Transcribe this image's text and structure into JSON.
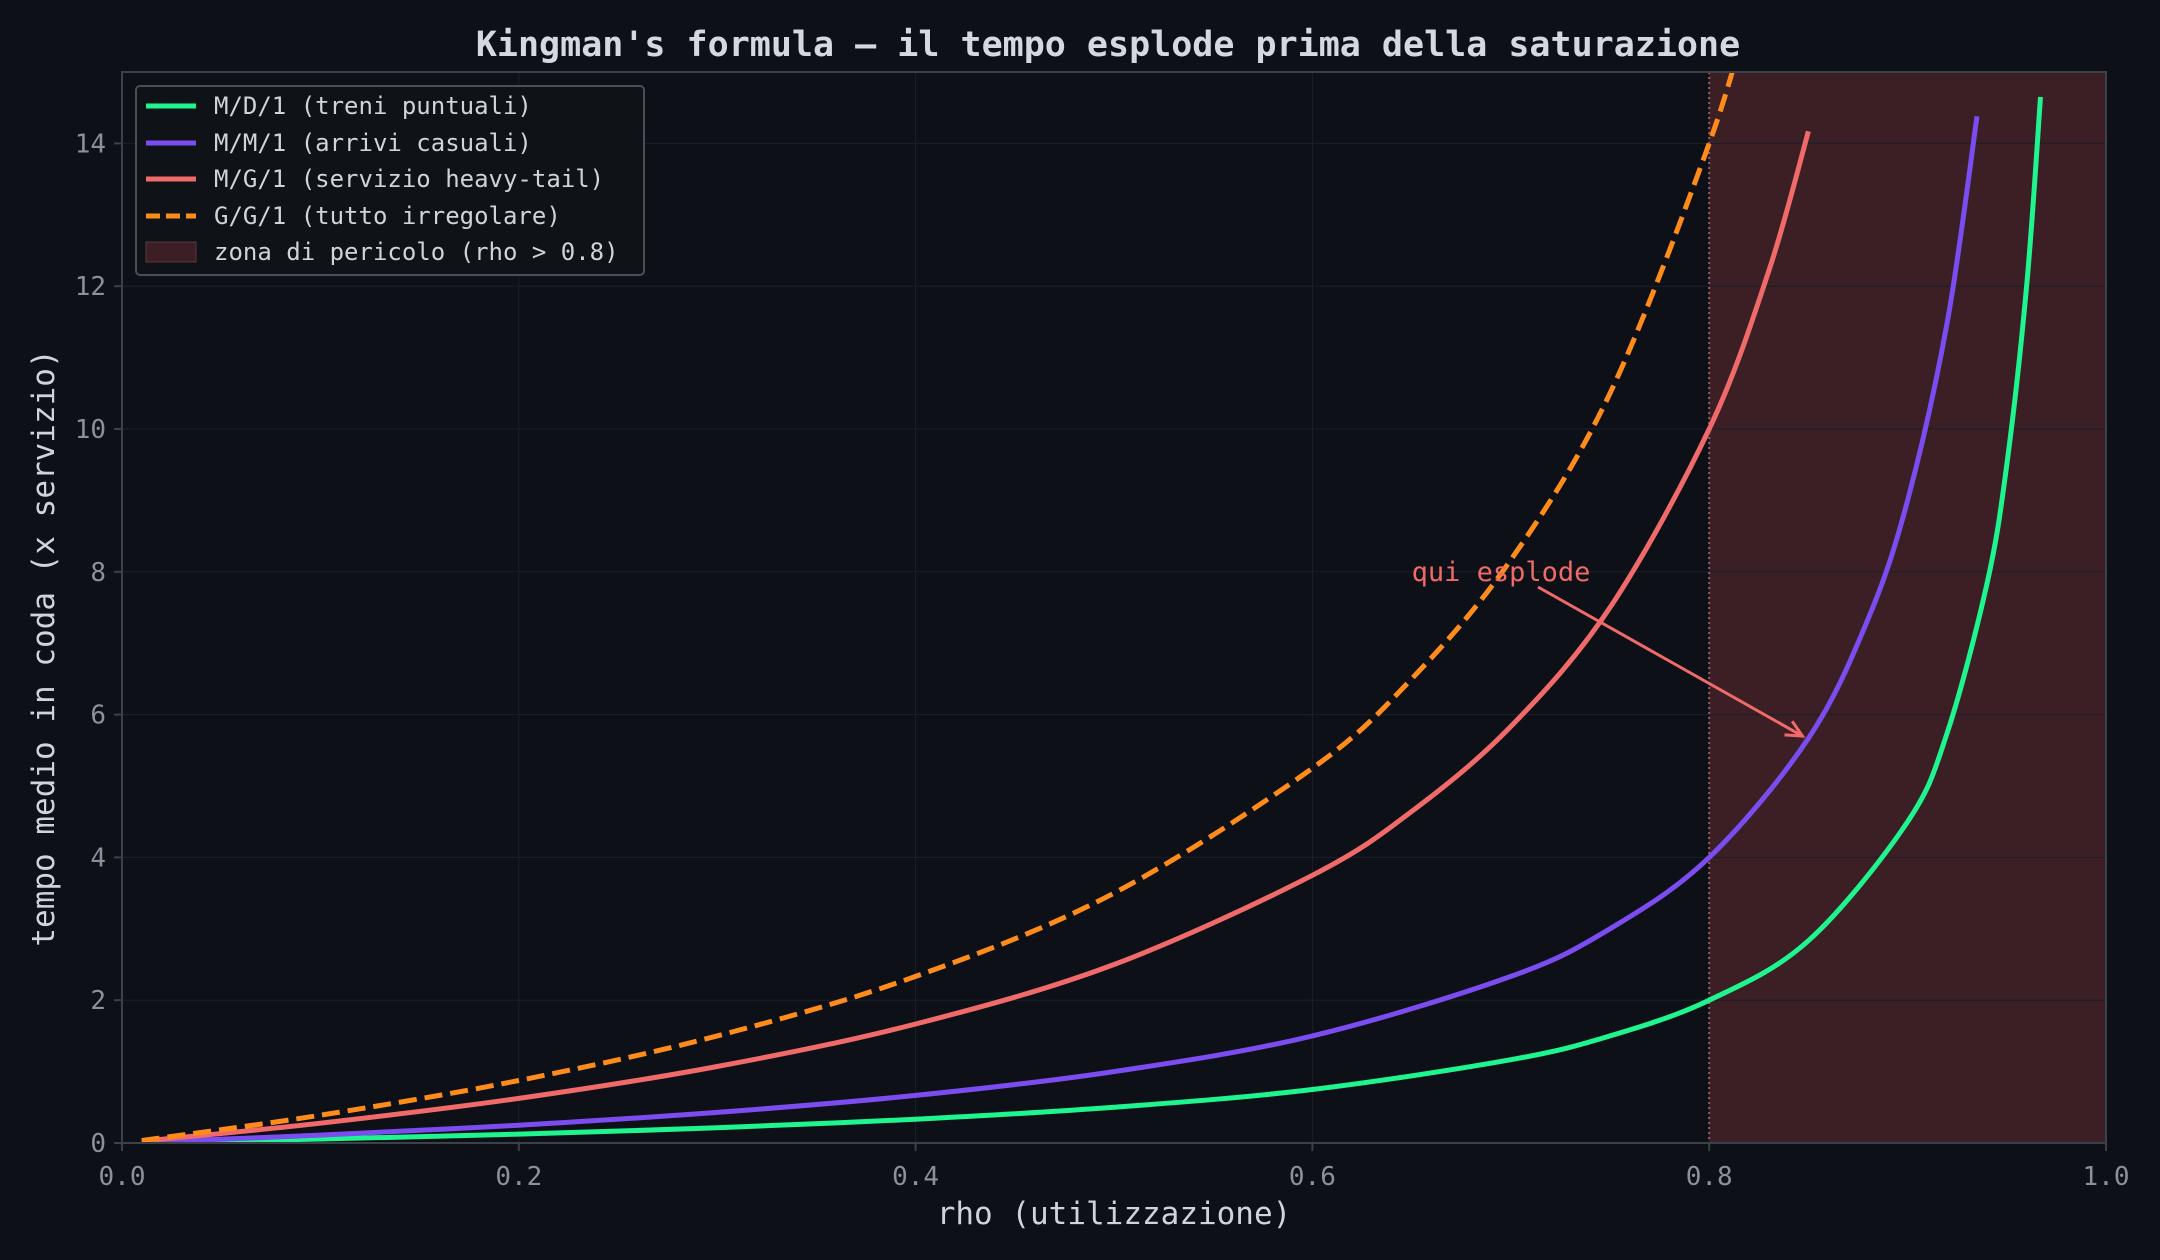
{
  "chart_data": {
    "type": "line",
    "title": "Kingman's formula — il tempo esplode prima della saturazione",
    "xlabel": "rho (utilizzazione)",
    "ylabel": "tempo medio in coda (x servizio)",
    "xlim": [
      0,
      1
    ],
    "ylim": [
      0,
      15
    ],
    "xticks": [
      0.0,
      0.2,
      0.4,
      0.6,
      0.8,
      1.0
    ],
    "xtick_labels": [
      "0.0",
      "0.2",
      "0.4",
      "0.6",
      "0.8",
      "1.0"
    ],
    "yticks": [
      0,
      2,
      4,
      6,
      8,
      10,
      12,
      14
    ],
    "ytick_labels": [
      "0",
      "2",
      "4",
      "6",
      "8",
      "10",
      "12",
      "14"
    ],
    "grid": true,
    "legend_position": "top-left",
    "series": [
      {
        "name": "M/D/1  (treni puntuali)",
        "color": "#1ff58f",
        "style": "solid",
        "x": [
          0.01,
          0.1,
          0.2,
          0.3,
          0.4,
          0.5,
          0.6,
          0.7,
          0.75,
          0.8,
          0.85,
          0.9,
          0.92,
          0.94,
          0.95,
          0.96,
          0.967
        ],
        "values": [
          0.005,
          0.056,
          0.125,
          0.214,
          0.333,
          0.5,
          0.75,
          1.167,
          1.5,
          2.0,
          2.833,
          4.5,
          5.75,
          7.833,
          9.5,
          12.0,
          14.65
        ]
      },
      {
        "name": "M/M/1  (arrivi casuali)",
        "color": "#7b4df0",
        "style": "solid",
        "x": [
          0.01,
          0.1,
          0.2,
          0.3,
          0.4,
          0.5,
          0.6,
          0.7,
          0.75,
          0.8,
          0.85,
          0.88,
          0.9,
          0.92,
          0.935
        ],
        "values": [
          0.01,
          0.111,
          0.25,
          0.429,
          0.667,
          1.0,
          1.5,
          2.333,
          3.0,
          4.0,
          5.667,
          7.333,
          9.0,
          11.5,
          14.38
        ]
      },
      {
        "name": "M/G/1  (servizio heavy-tail)",
        "color": "#f06a6a",
        "style": "solid",
        "x": [
          0.01,
          0.1,
          0.2,
          0.3,
          0.4,
          0.5,
          0.6,
          0.65,
          0.7,
          0.75,
          0.8,
          0.83,
          0.85
        ],
        "values": [
          0.025,
          0.278,
          0.625,
          1.071,
          1.667,
          2.5,
          3.75,
          4.643,
          5.833,
          7.5,
          10.0,
          12.21,
          14.17
        ]
      },
      {
        "name": "G/G/1  (tutto irregolare)",
        "color": "#ff8c1a",
        "style": "dashed",
        "x": [
          0.01,
          0.1,
          0.2,
          0.3,
          0.4,
          0.5,
          0.6,
          0.65,
          0.7,
          0.75,
          0.8,
          0.82
        ],
        "values": [
          0.035,
          0.389,
          0.875,
          1.5,
          2.333,
          3.5,
          5.25,
          6.5,
          8.167,
          10.5,
          14.0,
          15.86
        ]
      }
    ],
    "shaded_regions": [
      {
        "name": "zona di pericolo (rho > 0.8)",
        "x_start": 0.8,
        "x_end": 1.0,
        "color": "#3b1f24"
      }
    ],
    "reference_lines": [
      {
        "x": 0.8,
        "color": "#a05a63",
        "style": "dotted"
      }
    ],
    "annotations": [
      {
        "text": "qui esplode",
        "text_x": 0.65,
        "text_y": 8.0,
        "arrow_to_x": 0.847,
        "arrow_to_y": 5.7,
        "color": "#f06a6a"
      }
    ]
  },
  "colors": {
    "background": "#0d1017",
    "plot_background": "#0d1017",
    "grid": "#1a1f28",
    "spine": "#3c4149",
    "text": "#d4d9e1",
    "tick_text": "#8b919b",
    "legend_bg": "#0f1218",
    "legend_border": "#4a4f57"
  }
}
